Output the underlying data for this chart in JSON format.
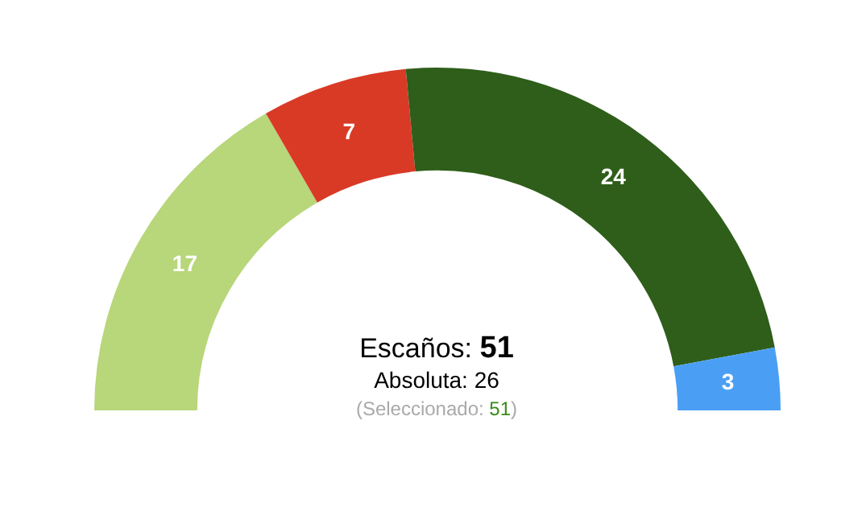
{
  "chart_data": {
    "type": "donut",
    "categories": [
      null,
      null,
      null,
      null
    ],
    "values": [
      17,
      7,
      24,
      3
    ],
    "colors": [
      "#b8d67a",
      "#d93a26",
      "#2e5e1a",
      "#4a9ff5"
    ],
    "data_labels": true,
    "legend": false,
    "annotations": [
      "Escaños: 51",
      "Absoluta: 26",
      "(Seleccionado: 51)"
    ]
  }
}
